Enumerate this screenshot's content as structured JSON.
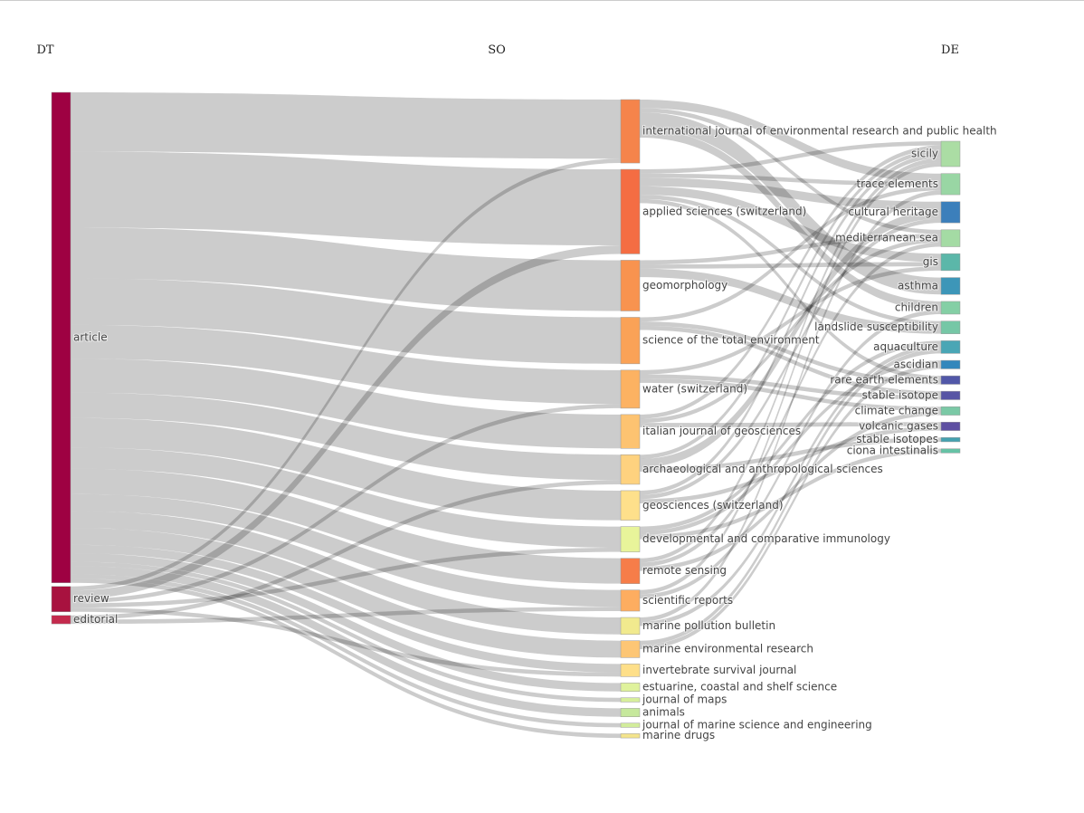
{
  "chart_data": {
    "type": "sankey",
    "columns": [
      {
        "title": "DT",
        "nodes": [
          {
            "label": "article",
            "color": "#9e0142"
          },
          {
            "label": "review",
            "color": "#a8123f"
          },
          {
            "label": "editorial",
            "color": "#c42a4d"
          }
        ]
      },
      {
        "title": "SO",
        "nodes": [
          {
            "label": "international journal of environmental research and public health",
            "color": "#f5844b"
          },
          {
            "label": "applied sciences (switzerland)",
            "color": "#f46d43"
          },
          {
            "label": "geomorphology",
            "color": "#f8934f"
          },
          {
            "label": "science of the total environment",
            "color": "#faa257"
          },
          {
            "label": "water (switzerland)",
            "color": "#fcb262"
          },
          {
            "label": "italian journal of geosciences",
            "color": "#fdc371"
          },
          {
            "label": "archaeological and anthropological sciences",
            "color": "#fed27f"
          },
          {
            "label": "geosciences (switzerland)",
            "color": "#fee08b"
          },
          {
            "label": "developmental and comparative immunology",
            "color": "#e8f49a"
          },
          {
            "label": "remote sensing",
            "color": "#f67d49"
          },
          {
            "label": "scientific reports",
            "color": "#fdad60"
          },
          {
            "label": "marine pollution bulletin",
            "color": "#f1ea8e"
          },
          {
            "label": "marine environmental research",
            "color": "#fdc675"
          },
          {
            "label": "invertebrate survival journal",
            "color": "#fedf89"
          },
          {
            "label": "estuarine, coastal and shelf science",
            "color": "#dff29c"
          },
          {
            "label": "journal of maps",
            "color": "#d6ee9b"
          },
          {
            "label": "animals",
            "color": "#c6e89c"
          },
          {
            "label": "journal of marine science and engineering",
            "color": "#d2ec9b"
          },
          {
            "label": "marine drugs",
            "color": "#f4e48c"
          }
        ]
      },
      {
        "title": "DE",
        "nodes": [
          {
            "label": "sicily",
            "color": "#abdda4"
          },
          {
            "label": "trace elements",
            "color": "#99d6a4"
          },
          {
            "label": "cultural heritage",
            "color": "#3c7fbb"
          },
          {
            "label": "mediterranean sea",
            "color": "#a4dba4"
          },
          {
            "label": "gis",
            "color": "#5bb7a9"
          },
          {
            "label": "asthma",
            "color": "#3d96b8"
          },
          {
            "label": "children",
            "color": "#84cfa5"
          },
          {
            "label": "landslide susceptibility",
            "color": "#76c7a6"
          },
          {
            "label": "aquaculture",
            "color": "#4aa6b5"
          },
          {
            "label": "ascidian",
            "color": "#3287bc"
          },
          {
            "label": "rare earth elements",
            "color": "#5157a8"
          },
          {
            "label": "stable isotope",
            "color": "#5855a5"
          },
          {
            "label": "climate change",
            "color": "#7bc9a6"
          },
          {
            "label": "volcanic gases",
            "color": "#5e4fa2"
          },
          {
            "label": "stable isotopes",
            "color": "#45a2b0"
          },
          {
            "label": "ciona intestinalis",
            "color": "#66c2a5"
          }
        ]
      }
    ],
    "links": [
      {
        "source": "article",
        "target": "international journal of environmental research and public health",
        "value": 14
      },
      {
        "source": "review",
        "target": "international journal of environmental research and public health",
        "value": 1
      },
      {
        "source": "article",
        "target": "applied sciences (switzerland)",
        "value": 18
      },
      {
        "source": "review",
        "target": "applied sciences (switzerland)",
        "value": 2
      },
      {
        "source": "article",
        "target": "geomorphology",
        "value": 12
      },
      {
        "source": "article",
        "target": "science of the total environment",
        "value": 11
      },
      {
        "source": "article",
        "target": "water (switzerland)",
        "value": 8
      },
      {
        "source": "review",
        "target": "water (switzerland)",
        "value": 1
      },
      {
        "source": "article",
        "target": "italian journal of geosciences",
        "value": 8
      },
      {
        "source": "article",
        "target": "archaeological and anthropological sciences",
        "value": 6
      },
      {
        "source": "editorial",
        "target": "archaeological and anthropological sciences",
        "value": 1
      },
      {
        "source": "article",
        "target": "geosciences (switzerland)",
        "value": 7
      },
      {
        "source": "article",
        "target": "developmental and comparative immunology",
        "value": 5
      },
      {
        "source": "review",
        "target": "developmental and comparative immunology",
        "value": 1
      },
      {
        "source": "article",
        "target": "remote sensing",
        "value": 6
      },
      {
        "source": "article",
        "target": "scientific reports",
        "value": 4
      },
      {
        "source": "editorial",
        "target": "scientific reports",
        "value": 1
      },
      {
        "source": "article",
        "target": "marine pollution bulletin",
        "value": 4
      },
      {
        "source": "article",
        "target": "marine environmental research",
        "value": 4
      },
      {
        "source": "article",
        "target": "invertebrate survival journal",
        "value": 2
      },
      {
        "source": "review",
        "target": "invertebrate survival journal",
        "value": 1
      },
      {
        "source": "article",
        "target": "estuarine, coastal and shelf science",
        "value": 2
      },
      {
        "source": "article",
        "target": "journal of maps",
        "value": 1
      },
      {
        "source": "article",
        "target": "animals",
        "value": 2
      },
      {
        "source": "article",
        "target": "journal of marine science and engineering",
        "value": 1
      },
      {
        "source": "article",
        "target": "marine drugs",
        "value": 1
      },
      {
        "source": "international journal of environmental research and public health",
        "target": "trace elements",
        "value": 2
      },
      {
        "source": "international journal of environmental research and public health",
        "target": "asthma",
        "value": 4
      },
      {
        "source": "international journal of environmental research and public health",
        "target": "children",
        "value": 2
      },
      {
        "source": "international journal of environmental research and public health",
        "target": "mediterranean sea",
        "value": 1
      },
      {
        "source": "applied sciences (switzerland)",
        "target": "cultural heritage",
        "value": 2
      },
      {
        "source": "applied sciences (switzerland)",
        "target": "gis",
        "value": 2
      },
      {
        "source": "applied sciences (switzerland)",
        "target": "trace elements",
        "value": 1
      },
      {
        "source": "applied sciences (switzerland)",
        "target": "sicily",
        "value": 1
      },
      {
        "source": "applied sciences (switzerland)",
        "target": "landslide susceptibility",
        "value": 1
      },
      {
        "source": "applied sciences (switzerland)",
        "target": "rare earth elements",
        "value": 1
      },
      {
        "source": "geomorphology",
        "target": "landslide susceptibility",
        "value": 2
      },
      {
        "source": "geomorphology",
        "target": "gis",
        "value": 1
      },
      {
        "source": "geomorphology",
        "target": "mediterranean sea",
        "value": 1
      },
      {
        "source": "science of the total environment",
        "target": "trace elements",
        "value": 1
      },
      {
        "source": "science of the total environment",
        "target": "rare earth elements",
        "value": 1
      },
      {
        "source": "science of the total environment",
        "target": "stable isotope",
        "value": 1
      },
      {
        "source": "water (switzerland)",
        "target": "stable isotope",
        "value": 1
      },
      {
        "source": "water (switzerland)",
        "target": "climate change",
        "value": 1
      },
      {
        "source": "water (switzerland)",
        "target": "gis",
        "value": 1
      },
      {
        "source": "italian journal of geosciences",
        "target": "volcanic gases",
        "value": 1
      },
      {
        "source": "italian journal of geosciences",
        "target": "sicily",
        "value": 1
      },
      {
        "source": "italian journal of geosciences",
        "target": "mediterranean sea",
        "value": 1
      },
      {
        "source": "archaeological and anthropological sciences",
        "target": "cultural heritage",
        "value": 2
      },
      {
        "source": "archaeological and anthropological sciences",
        "target": "sicily",
        "value": 1
      },
      {
        "source": "archaeological and anthropological sciences",
        "target": "stable isotopes",
        "value": 1
      },
      {
        "source": "geosciences (switzerland)",
        "target": "sicily",
        "value": 1
      },
      {
        "source": "geosciences (switzerland)",
        "target": "volcanic gases",
        "value": 1
      },
      {
        "source": "geosciences (switzerland)",
        "target": "cultural heritage",
        "value": 1
      },
      {
        "source": "developmental and comparative immunology",
        "target": "ascidian",
        "value": 1
      },
      {
        "source": "developmental and comparative immunology",
        "target": "ciona intestinalis",
        "value": 1
      },
      {
        "source": "developmental and comparative immunology",
        "target": "aquaculture",
        "value": 1
      },
      {
        "source": "remote sensing",
        "target": "sicily",
        "value": 1
      },
      {
        "source": "remote sensing",
        "target": "mediterranean sea",
        "value": 1
      },
      {
        "source": "remote sensing",
        "target": "climate change",
        "value": 1
      },
      {
        "source": "scientific reports",
        "target": "sicily",
        "value": 1
      },
      {
        "source": "scientific reports",
        "target": "children",
        "value": 1
      },
      {
        "source": "marine pollution bulletin",
        "target": "trace elements",
        "value": 1
      },
      {
        "source": "marine pollution bulletin",
        "target": "aquaculture",
        "value": 1
      },
      {
        "source": "marine environmental research",
        "target": "aquaculture",
        "value": 1
      },
      {
        "source": "marine environmental research",
        "target": "ascidian",
        "value": 1
      }
    ]
  }
}
